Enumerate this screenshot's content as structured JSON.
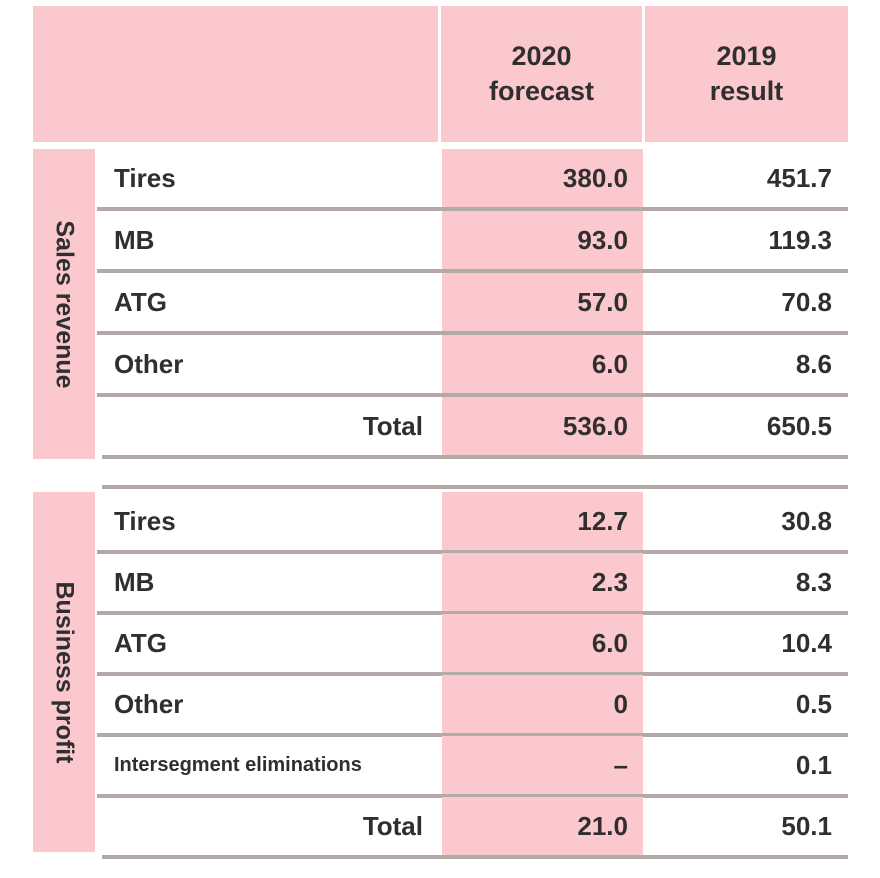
{
  "table": {
    "header": {
      "col_2020": "2020\nforecast",
      "col_2019": "2019\nresult"
    },
    "sections": [
      {
        "label": "Sales revenue",
        "rows": [
          {
            "label": "Tires",
            "v2020": "380.0",
            "v2019": "451.7"
          },
          {
            "label": "MB",
            "v2020": "93.0",
            "v2019": "119.3"
          },
          {
            "label": "ATG",
            "v2020": "57.0",
            "v2019": "70.8"
          },
          {
            "label": "Other",
            "v2020": "6.0",
            "v2019": "8.6"
          },
          {
            "label": "Total",
            "v2020": "536.0",
            "v2019": "650.5"
          }
        ]
      },
      {
        "label": "Business profit",
        "rows": [
          {
            "label": "Tires",
            "v2020": "12.7",
            "v2019": "30.8"
          },
          {
            "label": "MB",
            "v2020": "2.3",
            "v2019": "8.3"
          },
          {
            "label": "ATG",
            "v2020": "6.0",
            "v2019": "10.4"
          },
          {
            "label": "Other",
            "v2020": "0",
            "v2019": "0.5"
          },
          {
            "label": "Intersegment eliminations",
            "v2020": "–",
            "v2019": "0.1"
          },
          {
            "label": "Total",
            "v2020": "21.0",
            "v2019": "50.1"
          }
        ]
      }
    ]
  }
}
